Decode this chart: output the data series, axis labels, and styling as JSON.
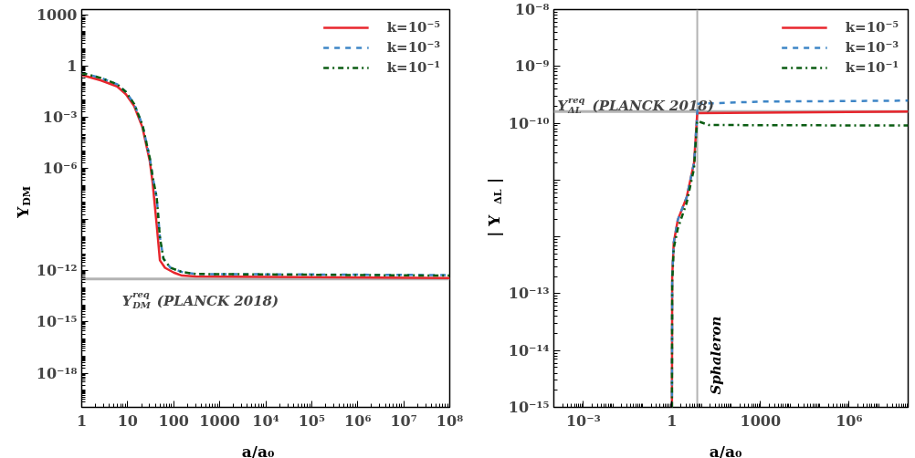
{
  "chart_data": [
    {
      "type": "line",
      "xlabel": "a/a₀",
      "ylabel": "Y$_{DM}$",
      "log": "xy",
      "legend": "top right",
      "grid": false,
      "xlim": [
        1,
        100000000
      ],
      "ylim": [
        1e-20,
        2000
      ],
      "xticks": [
        1,
        10,
        100,
        1000,
        {
          "value": 10000,
          "label": "10⁴"
        },
        {
          "value": 100000,
          "label": "10⁵"
        },
        {
          "value": 1000000,
          "label": "10⁶"
        },
        {
          "value": 10000000,
          "label": "10⁷"
        },
        {
          "value": 100000000,
          "label": "10⁸"
        }
      ],
      "yticks": [
        1000,
        1,
        {
          "value": 0.001,
          "label": "10⁻³"
        },
        {
          "value": 1e-06,
          "label": "10⁻⁶"
        },
        {
          "value": 1e-09,
          "label": null
        },
        {
          "value": 1e-12,
          "label": "10⁻¹²"
        },
        {
          "value": 1e-15,
          "label": "10⁻¹⁵"
        },
        {
          "value": 1e-18,
          "label": "10⁻¹⁸"
        }
      ],
      "ref_lines": [
        {
          "axis": "y",
          "value": 3.3e-13,
          "label": "Y$^{req}$$_{DM}$ (PLANCK 2018)",
          "color": "#b3b3b3"
        }
      ],
      "series": [
        {
          "name": "k=10⁻⁵",
          "color": "#e8262d",
          "line_style": "solid",
          "x": [
            1,
            2.57,
            5.89,
            9.12,
            13.8,
            20.9,
            30.2,
            34.7,
            42.7,
            50.1,
            64.6,
            100,
            151,
            302,
            100000000
          ],
          "values": [
            0.29,
            0.145,
            0.063,
            0.022,
            0.0044,
            0.00025,
            2.6e-06,
            1.5e-07,
            4.7e-10,
            4.1e-12,
            1.5e-12,
            7.9e-13,
            5.2e-13,
            4.7e-13,
            3.8e-13
          ]
        },
        {
          "name": "k=10⁻³",
          "color": "#3d85c6",
          "line_style": "dashed",
          "x": [
            1,
            2.57,
            5.89,
            9.12,
            13.8,
            20.9,
            30.2,
            34.7,
            42.7,
            50.1,
            60,
            85,
            151,
            302,
            100000000
          ],
          "values": [
            0.4,
            0.2,
            0.085,
            0.03,
            0.006,
            0.00035,
            4e-06,
            3.4e-07,
            1.9e-08,
            8.9e-11,
            5e-12,
            1.5e-12,
            8.5e-13,
            6.5e-13,
            5.6e-13
          ]
        },
        {
          "name": "k=10⁻¹",
          "color": "#0a5c12",
          "line_style": "dashdot",
          "x": [
            1,
            2.57,
            5.89,
            9.12,
            13.8,
            20.9,
            30.2,
            34.7,
            42.7,
            50.1,
            60,
            85,
            151,
            302,
            100000000
          ],
          "values": [
            0.39,
            0.2,
            0.085,
            0.03,
            0.006,
            0.00035,
            4e-06,
            3.4e-07,
            1.9e-08,
            8.9e-11,
            5e-12,
            1.5e-12,
            8.5e-13,
            6.5e-13,
            5.2e-13
          ]
        }
      ]
    },
    {
      "type": "line",
      "xlabel": "a/a₀",
      "ylabel": "| Y$_{ΔL}$ |",
      "log": "xy",
      "legend": "top right",
      "grid": false,
      "xlim": [
        0.0001,
        100000000
      ],
      "ylim": [
        1e-15,
        1e-08
      ],
      "xticks": [
        {
          "value": 0.001,
          "label": "10⁻³"
        },
        1,
        1000,
        {
          "value": 1000000,
          "label": "10⁶"
        }
      ],
      "yticks": [
        {
          "value": 1e-08,
          "label": "10⁻⁸"
        },
        {
          "value": 1e-09,
          "label": "10⁻⁹"
        },
        {
          "value": 1e-10,
          "label": "10⁻¹⁰"
        },
        {
          "value": 1e-11,
          "label": null
        },
        {
          "value": 1e-12,
          "label": null
        },
        {
          "value": 1e-13,
          "label": "10⁻¹³"
        },
        {
          "value": 1e-14,
          "label": "10⁻¹⁴"
        },
        {
          "value": 1e-15,
          "label": "10⁻¹⁵"
        }
      ],
      "ref_lines": [
        {
          "axis": "y",
          "value": 1.6e-10,
          "label": "Y$^{req}$$_{ΔL}$ (PLANCK 2018)",
          "color": "#b3b3b3"
        },
        {
          "axis": "x",
          "value": 7.2,
          "label": "Sphaleron",
          "color": "#b3b3b3"
        }
      ],
      "series": [
        {
          "name": "k=10⁻⁵",
          "color": "#e8262d",
          "line_style": "solid",
          "x": [
            1,
            1.02,
            1.15,
            1.58,
            3.16,
            5.6,
            7.2,
            100000000
          ],
          "values": [
            1e-15,
            2e-13,
            7.9e-13,
            2e-12,
            5e-12,
            2e-11,
            1.5e-10,
            1.6e-10
          ]
        },
        {
          "name": "k=10⁻³",
          "color": "#3d85c6",
          "line_style": "dashed",
          "x": [
            1,
            1.02,
            1.15,
            1.58,
            3.16,
            5.6,
            7.2,
            7.25,
            1000,
            100000000
          ],
          "values": [
            1e-15,
            2e-13,
            7.9e-13,
            2e-12,
            5e-12,
            2e-11,
            1.5e-10,
            2.2e-10,
            2.4e-10,
            2.5e-10
          ]
        },
        {
          "name": "k=10⁻¹",
          "color": "#0a5c12",
          "line_style": "dashdot",
          "x": [
            1,
            1.02,
            1.15,
            1.58,
            3.16,
            5.6,
            7.1,
            17.8,
            100000000
          ],
          "values": [
            1e-15,
            1.6e-13,
            6.3e-13,
            1.4e-12,
            4e-12,
            1.6e-11,
            1.1e-10,
            9.3e-11,
            9.1e-11
          ]
        }
      ]
    }
  ]
}
